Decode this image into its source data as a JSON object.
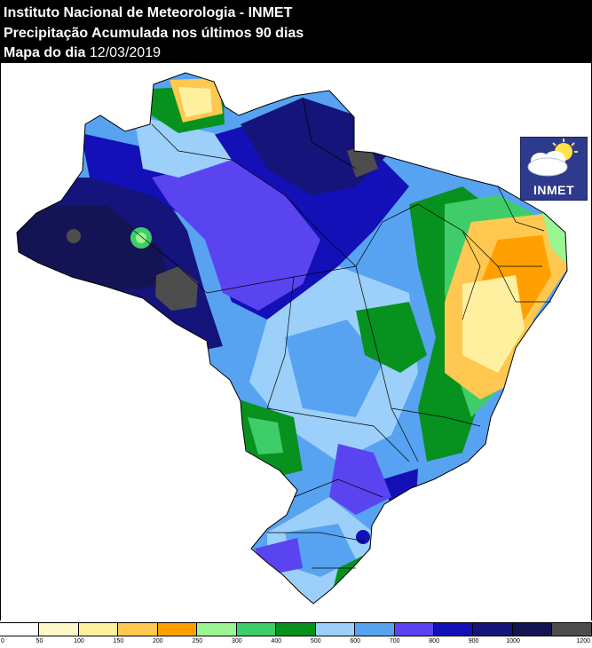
{
  "header": {
    "line1": "Instituto Nacional de Meteorologia - INMET",
    "line2": "Precipitação Acumulada nos últimos 90 dias",
    "line3_prefix": "Mapa do dia",
    "line3_date": "12/03/2019"
  },
  "logo": {
    "text": "INMET",
    "icon": "sun-cloud-icon"
  },
  "map": {
    "subject": "Brazil precipitation accumulation",
    "color_scale": "precipitation_mm"
  },
  "legend": {
    "colors": [
      "#ffffff",
      "#fff8c8",
      "#fff0a0",
      "#ffc850",
      "#ffa000",
      "#9af592",
      "#3fcd6a",
      "#07911f",
      "#9cd0fa",
      "#57a3f2",
      "#5a44f0",
      "#1410b8",
      "#14147a",
      "#141454",
      "#4d4d4d"
    ],
    "ticks": [
      "0",
      "50",
      "100",
      "150",
      "200",
      "250",
      "300",
      "400",
      "500",
      "600",
      "700",
      "800",
      "900",
      "1000",
      "1200"
    ]
  }
}
